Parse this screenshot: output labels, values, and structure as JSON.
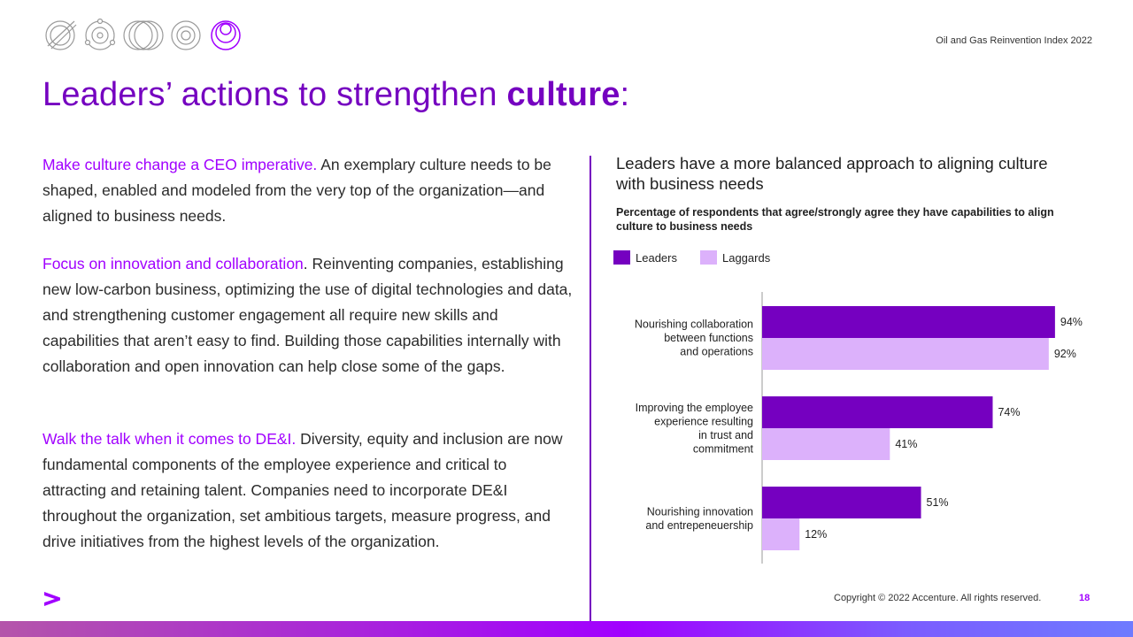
{
  "header": {
    "report_name": "Oil and Gas Reinvention Index 2022",
    "title_main": "Leaders’ actions to strengthen ",
    "title_bold": "culture",
    "title_end": ":"
  },
  "paragraphs": [
    {
      "lead": "Make culture change a CEO imperative.",
      "body": " An exemplary culture needs to be shaped, enabled and modeled from the very top of the organization—and aligned to business needs."
    },
    {
      "lead": "Focus on innovation and collaboration",
      "body": ". Reinventing companies, establishing new low-carbon business, optimizing the use of digital technologies and data, and strengthening customer engagement all require new skills and capabilities that aren’t easy to find. Building those capabilities internally with collaboration and open innovation can help close some of the gaps."
    },
    {
      "lead": "Walk the talk when it comes to DE&I.",
      "body": " Diversity, equity and inclusion are now fundamental components of the employee experience and critical to attracting and retaining talent. Companies need to incorporate DE&I throughout the organization, set ambitious targets, measure progress, and drive initiatives from the highest levels of the organization."
    }
  ],
  "chart_data": {
    "type": "bar",
    "orientation": "horizontal",
    "title": "Leaders have a more balanced approach to aligning culture with business needs",
    "subtitle": "Percentage of respondents that agree/strongly agree they have capabilities to align culture to business needs",
    "categories": [
      [
        "Nourishing collaboration",
        "between functions",
        "and operations"
      ],
      [
        "Improving the employee",
        "experience resulting",
        "in trust and",
        "commitment"
      ],
      [
        "Nourishing innovation",
        "and entrepeneuership"
      ]
    ],
    "series": [
      {
        "name": "Leaders",
        "color": "#7500c0",
        "values": [
          94,
          74,
          51
        ]
      },
      {
        "name": "Laggards",
        "color": "#dcb1fb",
        "values": [
          92,
          41,
          12
        ]
      }
    ],
    "value_suffix": "%",
    "xlim": [
      0,
      100
    ],
    "legend_position": "top-left",
    "grid": false
  },
  "footer": {
    "copyright": "Copyright © 2022 Accenture. All rights reserved.",
    "page_number": "18"
  },
  "icons": [
    "circle-slash-icon",
    "orbit-icon",
    "overlapping-circles-icon",
    "concentric-circles-icon",
    "target-icon"
  ],
  "colors": {
    "accent": "#a100ff",
    "dark_purple": "#7500c0",
    "light_purple": "#dcb1fb"
  }
}
